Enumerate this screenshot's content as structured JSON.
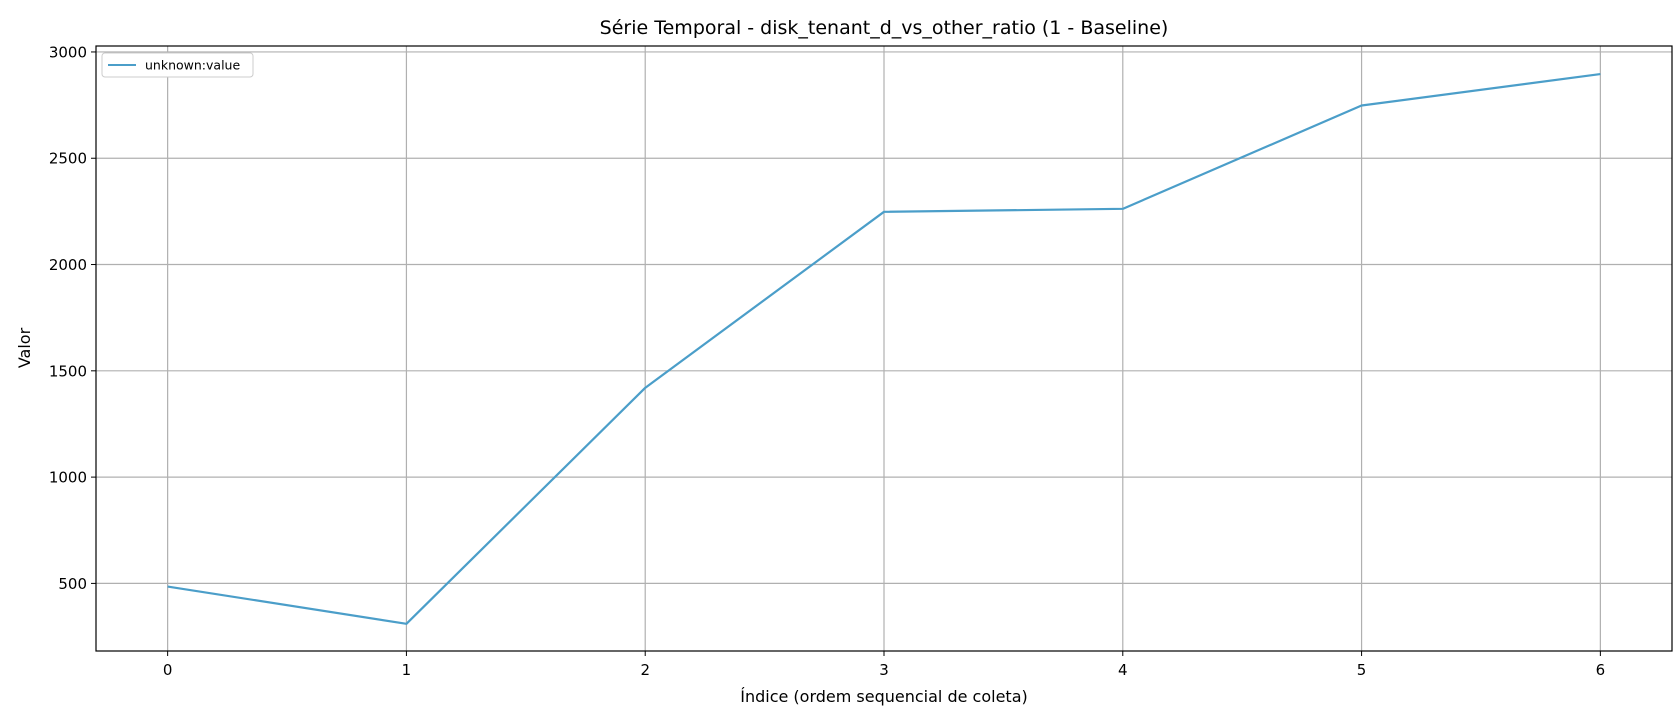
{
  "chart_data": {
    "type": "line",
    "title": "Série Temporal - disk_tenant_d_vs_other_ratio (1 - Baseline)",
    "xlabel": "Índice (ordem sequencial de coleta)",
    "ylabel": "Valor",
    "x": [
      0,
      1,
      2,
      3,
      4,
      5,
      6
    ],
    "xlim": [
      -0.3,
      6.3
    ],
    "ylim": [
      182,
      3028
    ],
    "xticks": [
      0,
      1,
      2,
      3,
      4,
      5,
      6
    ],
    "xtick_labels": [
      "0",
      "1",
      "2",
      "3",
      "4",
      "5",
      "6"
    ],
    "yticks": [
      500,
      1000,
      1500,
      2000,
      2500,
      3000
    ],
    "ytick_labels": [
      "500",
      "1000",
      "1500",
      "2000",
      "2500",
      "3000"
    ],
    "grid": true,
    "legend_position": "top-left",
    "series": [
      {
        "name": "unknown:value",
        "color": "#4b9ec9",
        "values": [
          485,
          310,
          1420,
          2248,
          2262,
          2748,
          2896
        ]
      }
    ]
  }
}
